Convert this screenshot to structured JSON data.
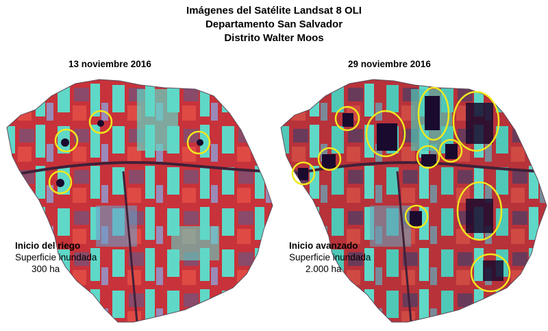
{
  "title": {
    "line1": "Imágenes del Satélite Landsat 8 OLI",
    "line2": "Departamento San Salvador",
    "line3": "Distrito Walter Moos"
  },
  "panels": [
    {
      "date": "13 noviembre 2016",
      "status": "Inicio del riego",
      "label": "Superficie inundada",
      "area": "300 ha"
    },
    {
      "date": "29 noviembre 2016",
      "status": "Inicio avanzado",
      "label": "Superficie inundada",
      "area": "2.000 ha"
    }
  ],
  "colors": {
    "vegetation": "#d9393c",
    "cyan_fields": "#5fd8c8",
    "highlight": "#f2e81c",
    "flooded": "#1a0a2e"
  }
}
